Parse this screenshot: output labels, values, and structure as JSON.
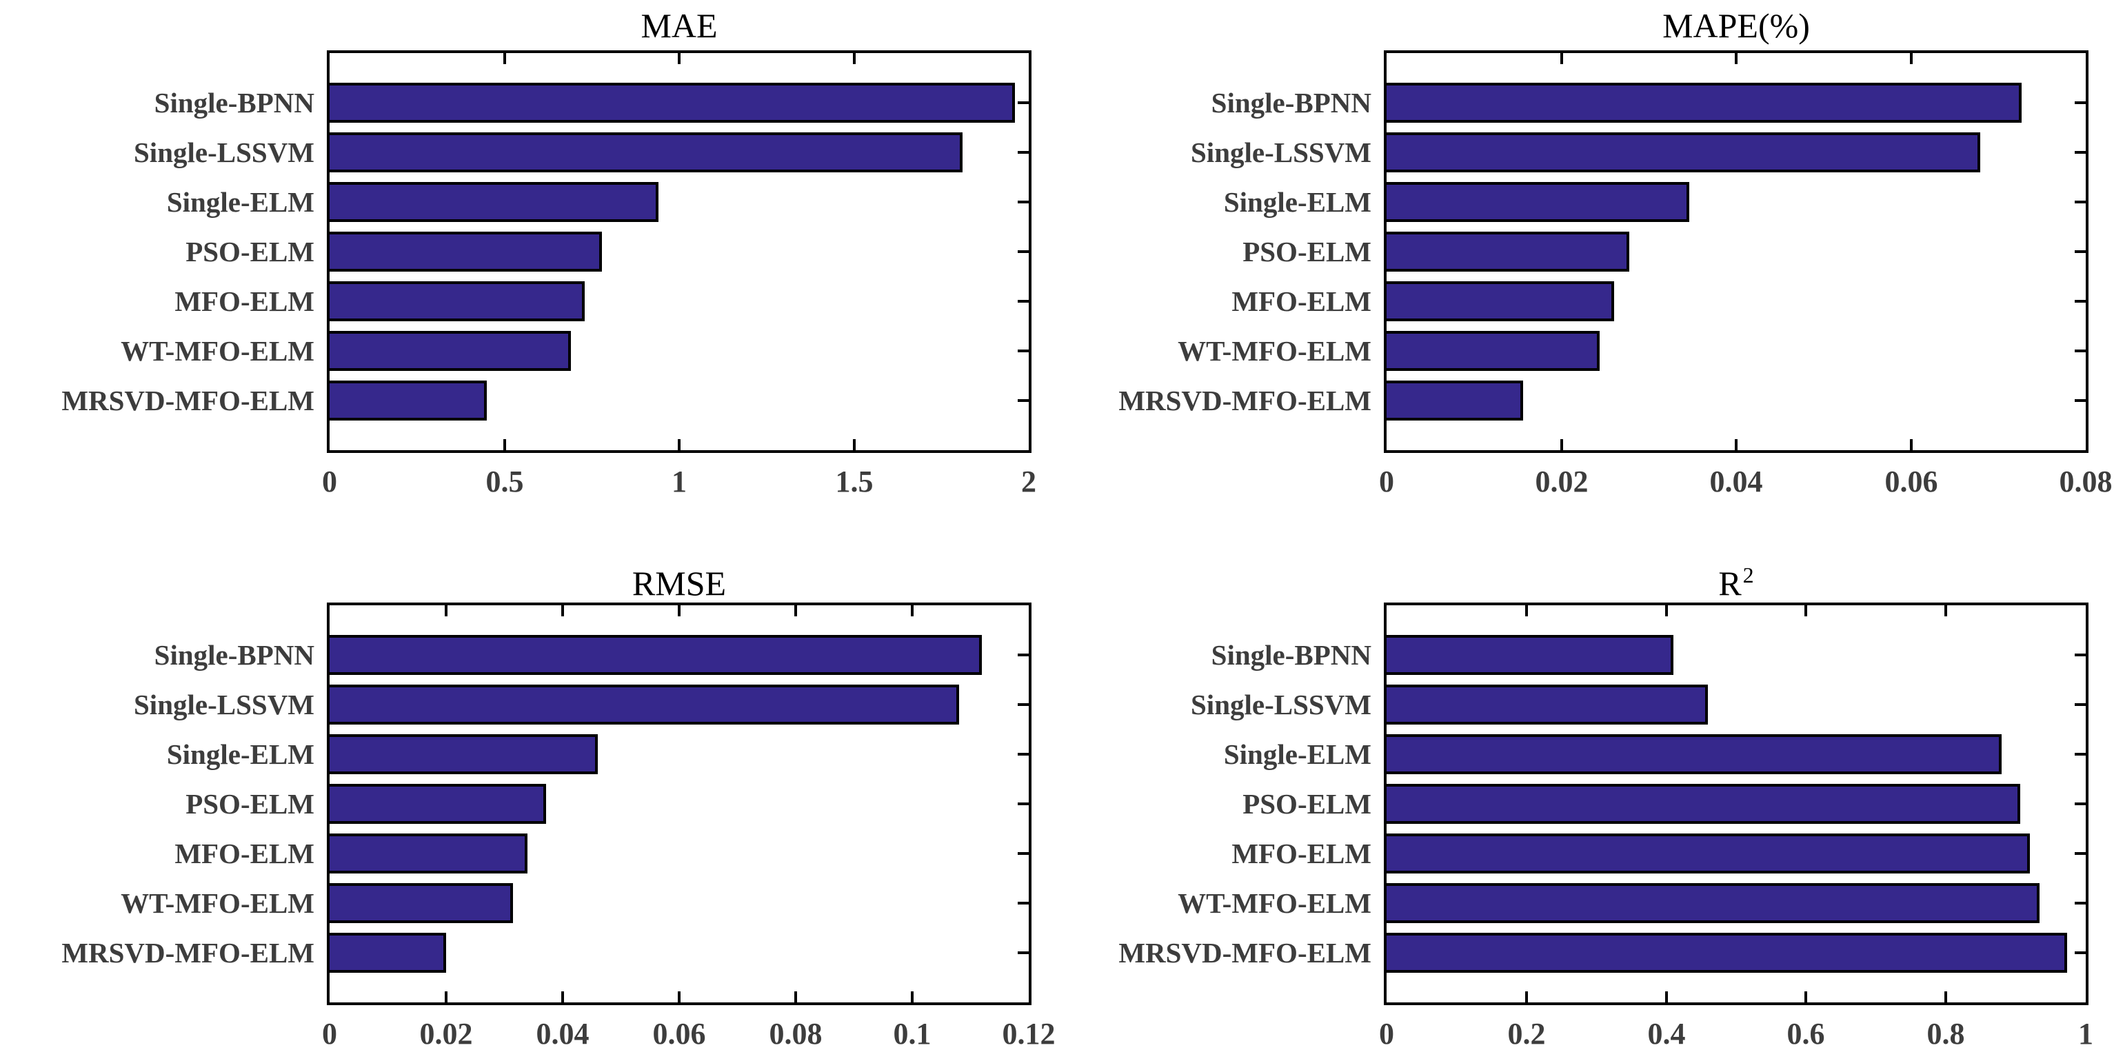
{
  "figure": {
    "style": {
      "background_color": "#ffffff",
      "bar_fill_color": "#36288c",
      "bar_edge_color": "#000000",
      "axis_box_color": "#000000",
      "tick_label_color": "#3d3d3d",
      "category_label_color": "#3d3d3d",
      "title_color": "#000000"
    }
  },
  "chart_data": [
    {
      "type": "bar",
      "orientation": "horizontal",
      "panel": "top-left",
      "title": "MAE",
      "title_sup": "",
      "categories": [
        "Single-BPNN",
        "Single-LSSVM",
        "Single-ELM",
        "PSO-ELM",
        "MFO-ELM",
        "WT-MFO-ELM",
        "MRSVD-MFO-ELM"
      ],
      "values": [
        1.96,
        1.81,
        0.94,
        0.78,
        0.73,
        0.69,
        0.45
      ],
      "xlim": [
        0,
        2
      ],
      "xtick_values": [
        0,
        0.5,
        1,
        1.5,
        2
      ],
      "xtick_labels": [
        "0",
        "0.5",
        "1",
        "1.5",
        "2"
      ],
      "grid": false,
      "legend": "none"
    },
    {
      "type": "bar",
      "orientation": "horizontal",
      "panel": "top-right",
      "title": "MAPE(%)",
      "title_sup": "",
      "categories": [
        "Single-BPNN",
        "Single-LSSVM",
        "Single-ELM",
        "PSO-ELM",
        "MFO-ELM",
        "WT-MFO-ELM",
        "MRSVD-MFO-ELM"
      ],
      "values": [
        0.0727,
        0.0679,
        0.0346,
        0.0278,
        0.026,
        0.0244,
        0.0156
      ],
      "xlim": [
        0,
        0.08
      ],
      "xtick_values": [
        0,
        0.02,
        0.04,
        0.06,
        0.08
      ],
      "xtick_labels": [
        "0",
        "0.02",
        "0.04",
        "0.06",
        "0.08"
      ],
      "grid": false,
      "legend": "none"
    },
    {
      "type": "bar",
      "orientation": "horizontal",
      "panel": "bottom-left",
      "title": "RMSE",
      "title_sup": "",
      "categories": [
        "Single-BPNN",
        "Single-LSSVM",
        "Single-ELM",
        "PSO-ELM",
        "MFO-ELM",
        "WT-MFO-ELM",
        "MRSVD-MFO-ELM"
      ],
      "values": [
        0.112,
        0.108,
        0.046,
        0.0372,
        0.034,
        0.0315,
        0.02
      ],
      "xlim": [
        0,
        0.12
      ],
      "xtick_values": [
        0,
        0.02,
        0.04,
        0.06,
        0.08,
        0.1,
        0.12
      ],
      "xtick_labels": [
        "0",
        "0.02",
        "0.04",
        "0.06",
        "0.08",
        "0.1",
        "0.12"
      ],
      "grid": false,
      "legend": "none"
    },
    {
      "type": "bar",
      "orientation": "horizontal",
      "panel": "bottom-right",
      "title": "R",
      "title_sup": "2",
      "categories": [
        "Single-BPNN",
        "Single-LSSVM",
        "Single-ELM",
        "PSO-ELM",
        "MFO-ELM",
        "WT-MFO-ELM",
        "MRSVD-MFO-ELM"
      ],
      "values": [
        0.41,
        0.46,
        0.88,
        0.906,
        0.92,
        0.934,
        0.973
      ],
      "xlim": [
        0,
        1
      ],
      "xtick_values": [
        0,
        0.2,
        0.4,
        0.6,
        0.8,
        1
      ],
      "xtick_labels": [
        "0",
        "0.2",
        "0.4",
        "0.6",
        "0.8",
        "1"
      ],
      "grid": false,
      "legend": "none"
    }
  ]
}
